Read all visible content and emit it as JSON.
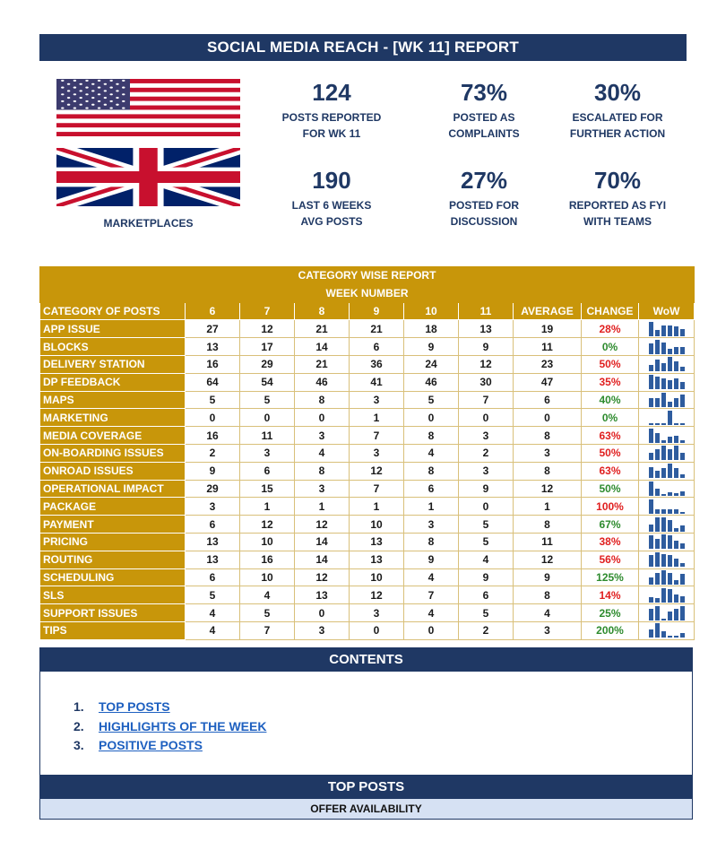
{
  "title": "SOCIAL MEDIA REACH - [WK 11] REPORT",
  "marketplaces_label": "MARKETPLACES",
  "kpis": [
    {
      "value": "124",
      "label1": "POSTS REPORTED",
      "label2": "FOR WK 11"
    },
    {
      "value": "73%",
      "label1": "POSTED AS",
      "label2": "COMPLAINTS"
    },
    {
      "value": "30%",
      "label1": "ESCALATED FOR",
      "label2": "FURTHER ACTION"
    },
    {
      "value": "190",
      "label1": "LAST 6 WEEKS",
      "label2": "AVG POSTS"
    },
    {
      "value": "27%",
      "label1": "POSTED FOR",
      "label2": "DISCUSSION"
    },
    {
      "value": "70%",
      "label1": "REPORTED AS FYI",
      "label2": "WITH TEAMS"
    }
  ],
  "colors": {
    "navy": "#1f3864",
    "gold": "#c8960a",
    "increase": "#e02020",
    "decrease": "#2e8b2e",
    "spark": "#2e5c9e",
    "link": "#1e60c0"
  },
  "table": {
    "title": "CATEGORY WISE REPORT",
    "subtitle": "WEEK NUMBER",
    "headers": [
      "CATEGORY OF POSTS",
      "6",
      "7",
      "8",
      "9",
      "10",
      "11",
      "AVERAGE",
      "CHANGE",
      "WoW"
    ],
    "rows": [
      {
        "category": "APP ISSUE",
        "weeks": [
          27,
          12,
          21,
          21,
          18,
          13
        ],
        "average": 19,
        "change": "28%",
        "trend": "up"
      },
      {
        "category": "BLOCKS",
        "weeks": [
          13,
          17,
          14,
          6,
          9,
          9
        ],
        "average": 11,
        "change": "0%",
        "trend": "down"
      },
      {
        "category": "DELIVERY STATION",
        "weeks": [
          16,
          29,
          21,
          36,
          24,
          12
        ],
        "average": 23,
        "change": "50%",
        "trend": "up"
      },
      {
        "category": "DP FEEDBACK",
        "weeks": [
          64,
          54,
          46,
          41,
          46,
          30
        ],
        "average": 47,
        "change": "35%",
        "trend": "up"
      },
      {
        "category": "MAPS",
        "weeks": [
          5,
          5,
          8,
          3,
          5,
          7
        ],
        "average": 6,
        "change": "40%",
        "trend": "down"
      },
      {
        "category": "MARKETING",
        "weeks": [
          0,
          0,
          0,
          1,
          0,
          0
        ],
        "average": 0,
        "change": "0%",
        "trend": "down"
      },
      {
        "category": "MEDIA COVERAGE",
        "weeks": [
          16,
          11,
          3,
          7,
          8,
          3
        ],
        "average": 8,
        "change": "63%",
        "trend": "up"
      },
      {
        "category": "ON-BOARDING ISSUES",
        "weeks": [
          2,
          3,
          4,
          3,
          4,
          2
        ],
        "average": 3,
        "change": "50%",
        "trend": "up"
      },
      {
        "category": "ONROAD ISSUES",
        "weeks": [
          9,
          6,
          8,
          12,
          8,
          3
        ],
        "average": 8,
        "change": "63%",
        "trend": "up"
      },
      {
        "category": "OPERATIONAL IMPACT",
        "weeks": [
          29,
          15,
          3,
          7,
          6,
          9
        ],
        "average": 12,
        "change": "50%",
        "trend": "down"
      },
      {
        "category": "PACKAGE",
        "weeks": [
          3,
          1,
          1,
          1,
          1,
          0
        ],
        "average": 1,
        "change": "100%",
        "trend": "up"
      },
      {
        "category": "PAYMENT",
        "weeks": [
          6,
          12,
          12,
          10,
          3,
          5
        ],
        "average": 8,
        "change": "67%",
        "trend": "down"
      },
      {
        "category": "PRICING",
        "weeks": [
          13,
          10,
          14,
          13,
          8,
          5
        ],
        "average": 11,
        "change": "38%",
        "trend": "up"
      },
      {
        "category": "ROUTING",
        "weeks": [
          13,
          16,
          14,
          13,
          9,
          4
        ],
        "average": 12,
        "change": "56%",
        "trend": "up"
      },
      {
        "category": "SCHEDULING",
        "weeks": [
          6,
          10,
          12,
          10,
          4,
          9
        ],
        "average": 9,
        "change": "125%",
        "trend": "down"
      },
      {
        "category": "SLS",
        "weeks": [
          5,
          4,
          13,
          12,
          7,
          6
        ],
        "average": 8,
        "change": "14%",
        "trend": "up"
      },
      {
        "category": "SUPPORT ISSUES",
        "weeks": [
          4,
          5,
          0,
          3,
          4,
          5
        ],
        "average": 4,
        "change": "25%",
        "trend": "down"
      },
      {
        "category": "TIPS",
        "weeks": [
          4,
          7,
          3,
          0,
          0,
          2
        ],
        "average": 3,
        "change": "200%",
        "trend": "down"
      }
    ]
  },
  "contents": {
    "title": "CONTENTS",
    "items": [
      {
        "num": "1.",
        "label": "TOP POSTS"
      },
      {
        "num": "2.",
        "label": "HIGHLIGHTS OF THE WEEK"
      },
      {
        "num": "3.",
        "label": "POSITIVE POSTS"
      }
    ]
  },
  "top_posts": {
    "title": "TOP POSTS",
    "subtitle": "OFFER AVAILABILITY"
  }
}
